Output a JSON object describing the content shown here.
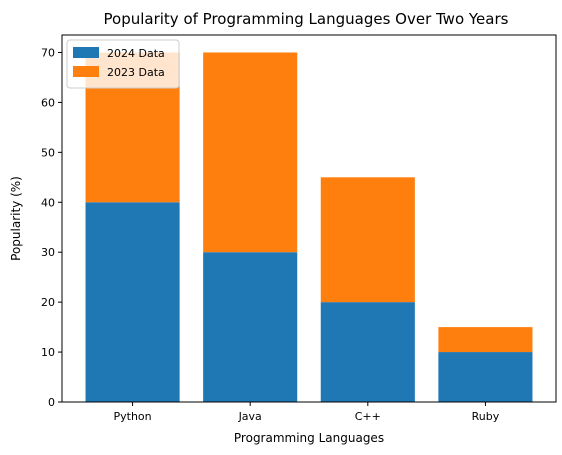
{
  "chart_data": {
    "type": "bar",
    "stacked": true,
    "title": "Popularity of Programming Languages Over Two Years",
    "xlabel": "Programming Languages",
    "ylabel": "Popularity (%)",
    "categories": [
      "Python",
      "Java",
      "C++",
      "Ruby"
    ],
    "series": [
      {
        "name": "2024 Data",
        "values": [
          40,
          30,
          20,
          10
        ],
        "color": "#1f77b4"
      },
      {
        "name": "2023 Data",
        "values": [
          30,
          40,
          25,
          5
        ],
        "color": "#ff7f0e"
      }
    ],
    "ylim": [
      0,
      73.5
    ],
    "yticks": [
      0,
      10,
      20,
      30,
      40,
      50,
      60,
      70
    ],
    "legend": "top-left",
    "grid": false
  }
}
